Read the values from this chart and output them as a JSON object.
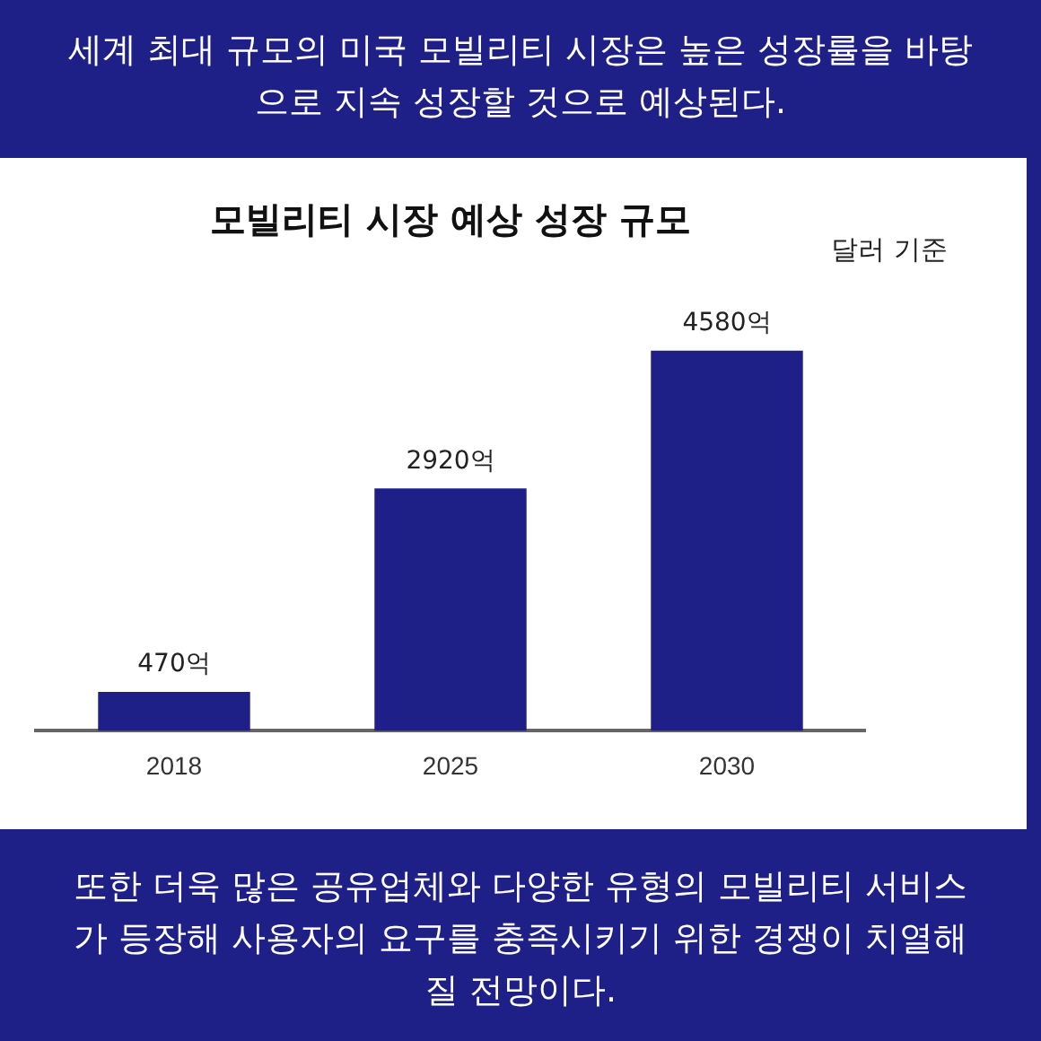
{
  "chart_data": {
    "type": "bar",
    "title": "모빌리티 시장 예상 성장 규모",
    "categories": [
      "2018",
      "2025",
      "2030"
    ],
    "values": [
      470,
      2920,
      4580
    ],
    "value_labels": [
      "470억",
      "2920억",
      "4580억"
    ],
    "color": "#1e1f87",
    "grid": false,
    "legend": false,
    "tick_labels": "x",
    "annotations": [
      "세계 최대 규모의 미국 모빌리티 시장은 높은 성장률을 바탕으로 지속 성장할 것으로 예상된다.",
      "또한 더욱 많은 공유업체와 다양한 유형의 모빌리티 서비스가 등장해 사용자의 요구를 충족시키기 위한 경쟁이 치열해질 전망이다.",
      "달러 기준"
    ]
  }
}
